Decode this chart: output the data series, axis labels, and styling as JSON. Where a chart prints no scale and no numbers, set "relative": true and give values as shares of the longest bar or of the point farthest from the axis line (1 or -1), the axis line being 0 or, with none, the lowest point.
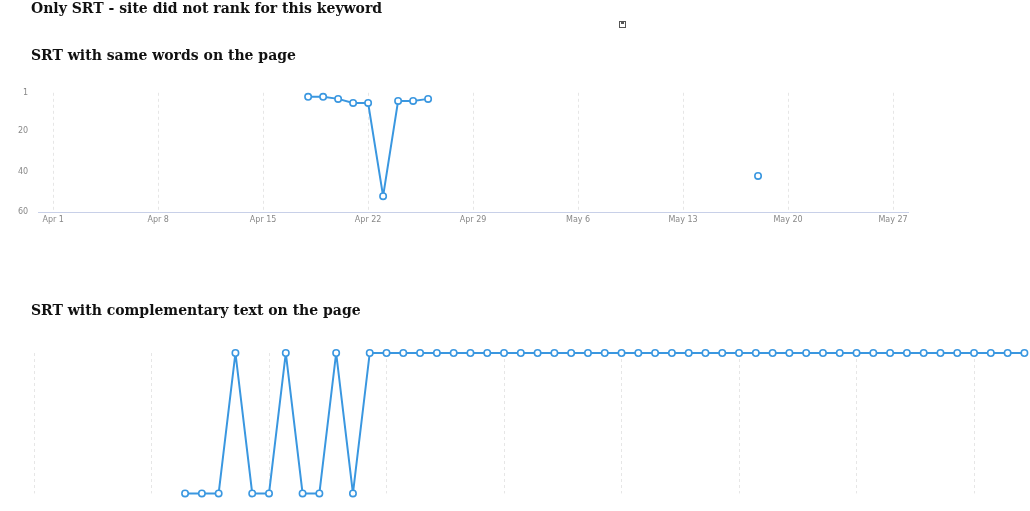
{
  "chart_data": [
    {
      "type": "line",
      "title": "SRT with same words on the page",
      "annotations": [
        "Only SRT  - site did not rank for this keyword"
      ],
      "series": [
        {
          "color": "#3a97e0",
          "x": [
            "--04-18",
            "--04-19",
            "--04-20",
            "--04-21",
            "--04-22",
            "--04-23",
            "--04-24",
            "--04-25",
            "--04-26"
          ],
          "values": [
            3,
            3,
            4,
            6,
            6,
            52,
            5,
            5,
            4
          ]
        },
        {
          "color": "#3a97e0",
          "x": [
            "--05-18"
          ],
          "values": [
            42
          ]
        }
      ],
      "xlim": [
        "--03-31",
        "--05-28"
      ],
      "xticks": [
        {
          "value": "--04-01",
          "label": "Apr 1"
        },
        {
          "value": "--04-08",
          "label": "Apr 8"
        },
        {
          "value": "--04-15",
          "label": "Apr 15"
        },
        {
          "value": "--04-22",
          "label": "Apr 22"
        },
        {
          "value": "--04-29",
          "label": "Apr 29"
        },
        {
          "value": "--05-06",
          "label": "May 6"
        },
        {
          "value": "--05-13",
          "label": "May 13"
        },
        {
          "value": "--05-20",
          "label": "May 20"
        },
        {
          "value": "--05-27",
          "label": "May 27"
        }
      ],
      "ylim": [
        60,
        1
      ],
      "yticks": [
        1,
        20,
        40,
        60
      ],
      "grid": "x",
      "marker": "circle",
      "line_style": "solid"
    },
    {
      "type": "line",
      "title": "SRT with complementary text on the page",
      "relative": true,
      "categories": [
        null,
        null,
        null,
        null,
        null,
        null,
        null,
        null,
        null,
        null,
        null,
        null,
        null,
        null,
        null,
        null,
        null,
        null,
        null,
        null,
        null,
        null,
        null,
        null,
        null,
        null,
        null,
        null,
        null,
        null,
        null,
        null,
        null,
        null,
        null,
        null,
        null,
        null,
        null,
        null,
        null,
        null,
        null,
        null,
        null,
        null,
        null,
        null,
        null,
        null,
        null,
        null,
        null,
        null,
        null,
        null,
        null,
        null,
        null,
        null
      ],
      "series": [
        {
          "color": "#3a97e0",
          "values": [
            null,
            null,
            null,
            null,
            null,
            null,
            null,
            null,
            null,
            0,
            0,
            0,
            1,
            0,
            0,
            1,
            0,
            0,
            1,
            0,
            1,
            1,
            1,
            1,
            1,
            1,
            1,
            1,
            1,
            1,
            1,
            1,
            1,
            1,
            1,
            1,
            1,
            1,
            1,
            1,
            1,
            1,
            1,
            1,
            1,
            1,
            1,
            1,
            1,
            1,
            1,
            1,
            1,
            1,
            1,
            1,
            1,
            1,
            1,
            1
          ]
        }
      ],
      "grid": "x",
      "marker": "circle",
      "line_style": "solid"
    }
  ]
}
